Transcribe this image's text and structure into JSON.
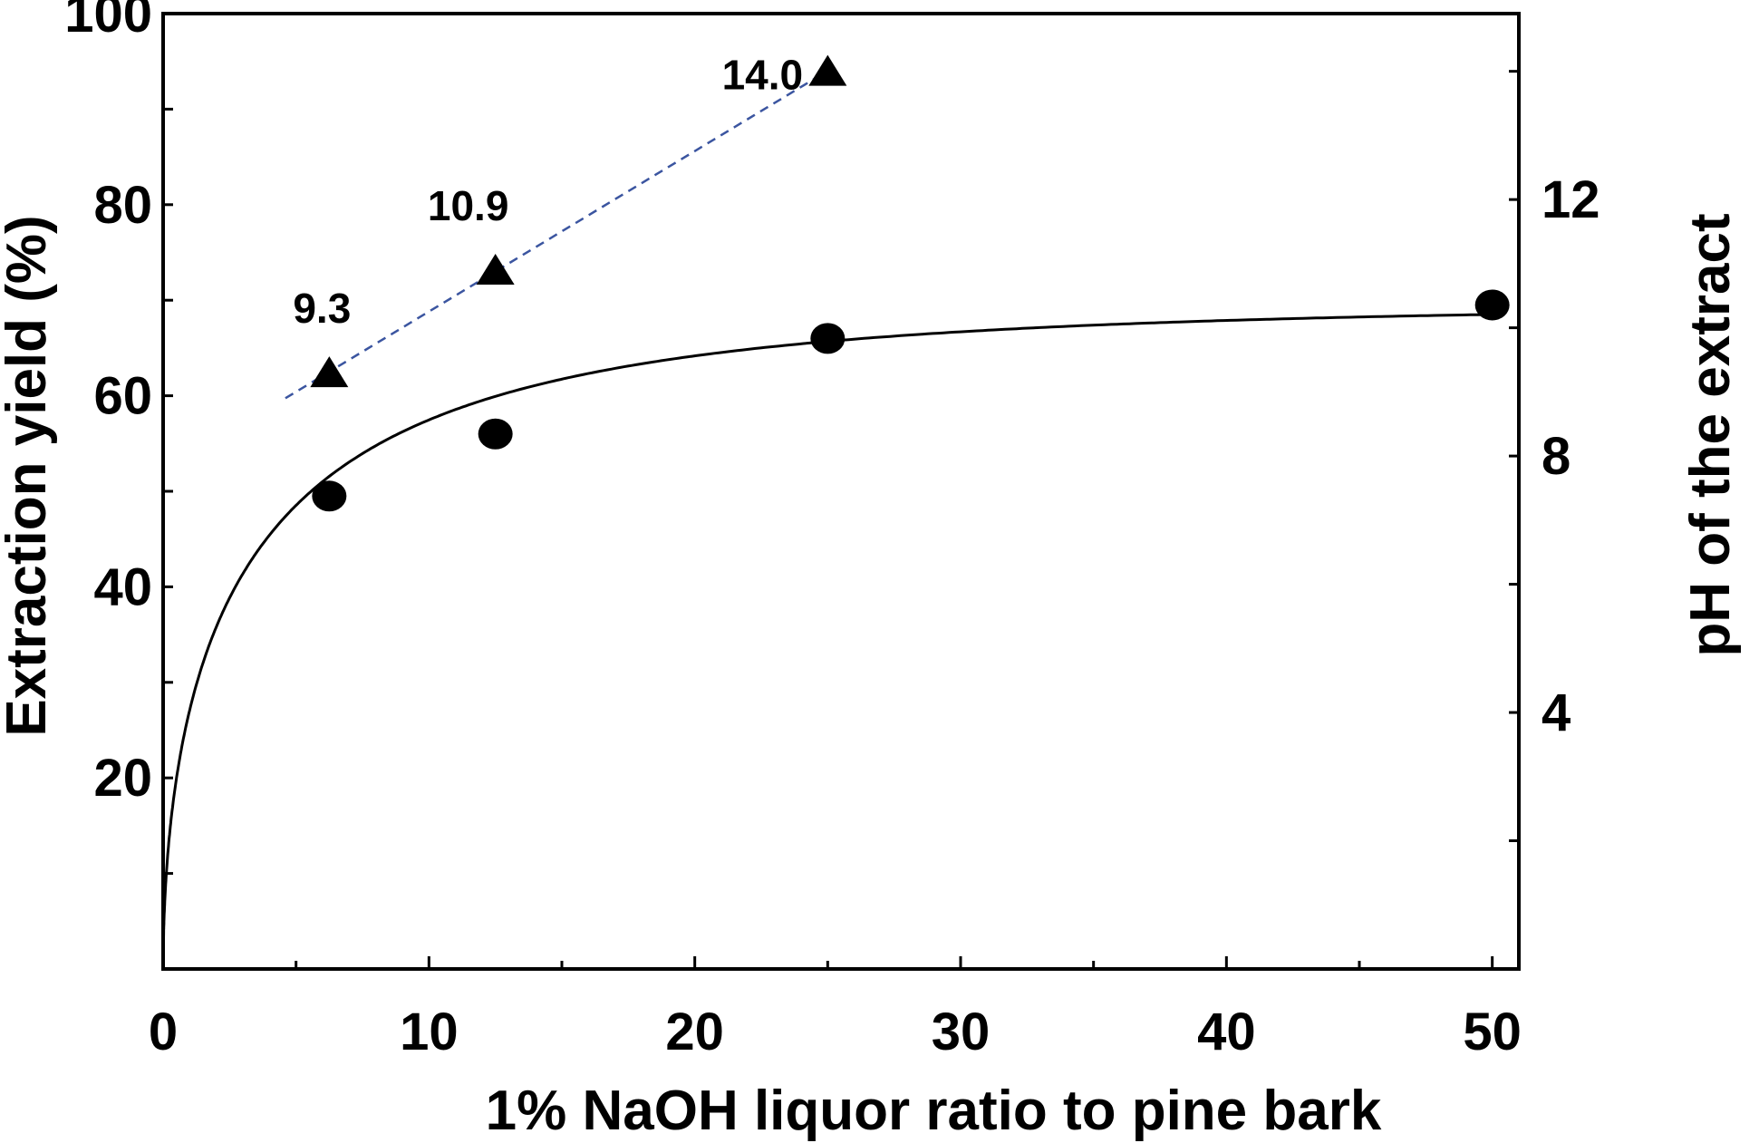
{
  "chart_data": {
    "type": "scatter",
    "xlabel": "1% NaOH liquor ratio to pine bark",
    "ylabel_left": "Extraction yield (%)",
    "ylabel_right": "pH of the extract",
    "xlim": [
      0,
      51
    ],
    "ylim_left": [
      0,
      100
    ],
    "ylim_right": [
      0,
      14.9
    ],
    "x_ticks": [
      "0",
      "10",
      "20",
      "30",
      "40",
      "50"
    ],
    "y_left_ticks": [
      "20",
      "40",
      "60",
      "80",
      "100"
    ],
    "y_right_ticks": [
      "4",
      "8",
      "12"
    ],
    "grid": false,
    "series": [
      {
        "marker": "circle",
        "axis": "left",
        "x": [
          6.25,
          12.5,
          25,
          50
        ],
        "y": [
          49.5,
          56,
          66,
          69.5
        ],
        "fit_curve": "log-like saturation fit (solid line)",
        "color": "#000000"
      },
      {
        "marker": "triangle",
        "axis": "right",
        "x": [
          6.25,
          12.5,
          25
        ],
        "y": [
          9.3,
          10.9,
          14.0
        ],
        "labels": [
          "9.3",
          "10.9",
          "14.0"
        ],
        "fit_line": "dashed",
        "color": "#000000",
        "line_color": "#3b55a0"
      }
    ]
  }
}
